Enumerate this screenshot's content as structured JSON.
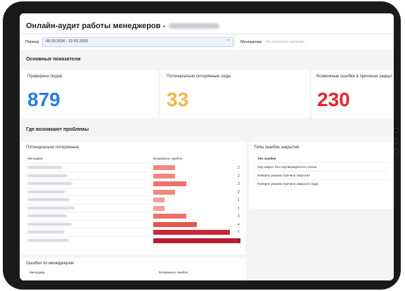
{
  "app": {
    "title": "Онлайн-аудит работы менеджеров -"
  },
  "filters": {
    "period_label": "Период",
    "period_value": "06.03.2026 - 12.03.2026",
    "clear_glyph": "×",
    "managers_label": "Менеджеры",
    "managers_placeholder": "Не заполнено значение"
  },
  "sections": {
    "main_metrics": "Основные показатели",
    "problems": "Где возникают проблемы"
  },
  "metrics": [
    {
      "label": "Проверено лидов",
      "value": "879",
      "color": "#2a7de1"
    },
    {
      "label": "Потенциально потерянные лиды",
      "value": "33",
      "color": "#f5b547"
    },
    {
      "label": "Возможные ошибки в причинах закрыт",
      "value": "230",
      "color": "#e5262d"
    }
  ],
  "lost_panel": {
    "title": "Потенциально потерянные",
    "col_manager": "Менеджер",
    "col_errors": "Возможных ошибок",
    "max_value": 8,
    "rows": [
      {
        "value": 2,
        "color": "#ee8a80"
      },
      {
        "value": 2,
        "color": "#ee8a80"
      },
      {
        "value": 3,
        "color": "#e9736a"
      },
      {
        "value": 2,
        "color": "#ee8a80"
      },
      {
        "value": 1,
        "color": "#f2a197"
      },
      {
        "value": 1,
        "color": "#f2a197"
      },
      {
        "value": 3,
        "color": "#e9736a"
      },
      {
        "value": 4,
        "color": "#e1574f"
      },
      {
        "value": 7,
        "color": "#c8283a"
      },
      {
        "value": 8,
        "color": "#b81c33"
      }
    ]
  },
  "error_types_panel": {
    "title": "Типы ошибок закрытия",
    "col_header": "Тип ошибки",
    "items": [
      "Лид закрыт без подтверждённого отказа",
      "Неверно указана причина закрытия",
      "Неверно указана причина закрытия лида"
    ]
  },
  "manager_errors_panel": {
    "title": "Ошибки по менеджерам",
    "col_manager": "Менеджер",
    "col_errors": "Возможных ошибок"
  }
}
